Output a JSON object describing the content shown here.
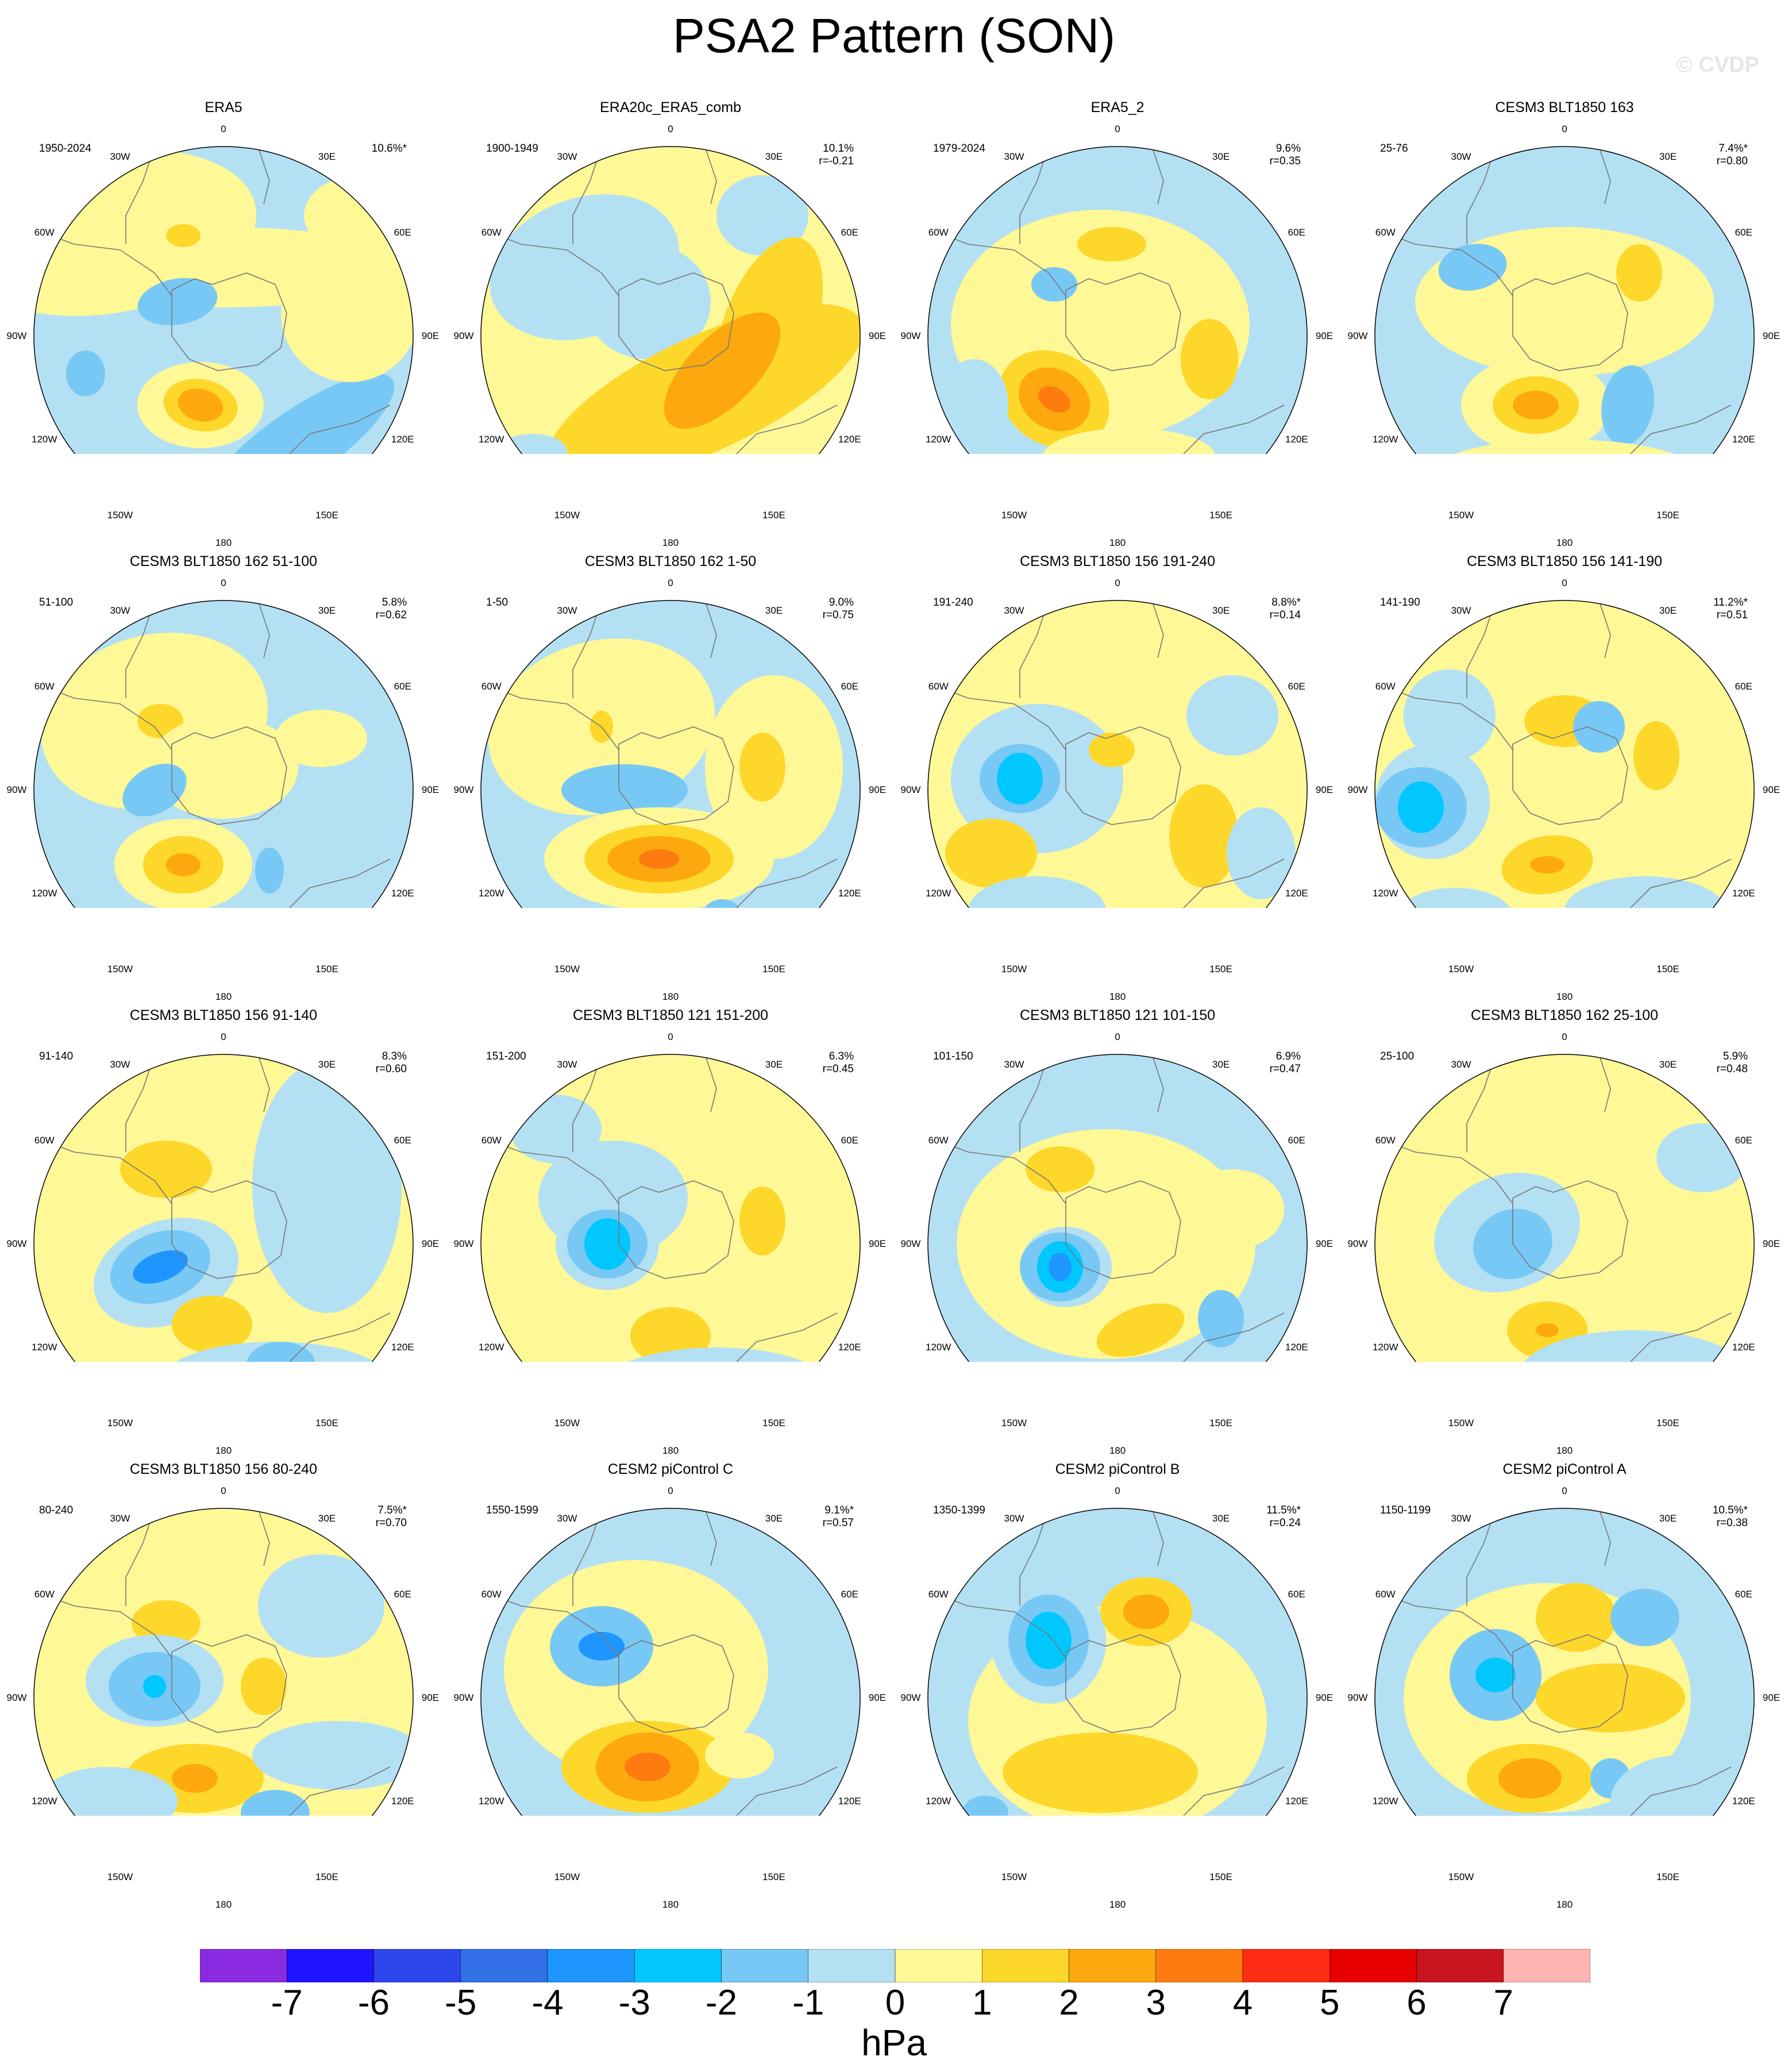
{
  "title": "PSA2 Pattern (SON)",
  "credit": "© CVDP",
  "units": "hPa",
  "colorbar": {
    "ticks": [
      "-7",
      "-6",
      "-5",
      "-4",
      "-3",
      "-2",
      "-1",
      "0",
      "1",
      "2",
      "3",
      "4",
      "5",
      "6",
      "7"
    ],
    "colors": [
      "#8a2be2",
      "#1e14ff",
      "#2c46eb",
      "#3270e8",
      "#1e96ff",
      "#00c8ff",
      "#78c8f5",
      "#b4e0f3",
      "#fff897",
      "#fdd72a",
      "#fda80f",
      "#fd7b0f",
      "#ff2d14",
      "#e60000",
      "#c8141e",
      "#ffb4b4"
    ]
  },
  "longitude_labels": [
    "0",
    "30E",
    "60E",
    "90E",
    "120E",
    "150E",
    "180",
    "150W",
    "120W",
    "90W",
    "60W",
    "30W"
  ],
  "panels": [
    {
      "title": "ERA5",
      "years": "1950-2024",
      "pct": "10.6%*",
      "r": ""
    },
    {
      "title": "ERA20c_ERA5_comb",
      "years": "1900-1949",
      "pct": "10.1%",
      "r": "r=-0.21"
    },
    {
      "title": "ERA5_2",
      "years": "1979-2024",
      "pct": "9.6%",
      "r": "r=0.35"
    },
    {
      "title": "CESM3 BLT1850 163",
      "years": "25-76",
      "pct": "7.4%*",
      "r": "r=0.80"
    },
    {
      "title": "CESM3 BLT1850 162 51-100",
      "years": "51-100",
      "pct": "5.8%",
      "r": "r=0.62"
    },
    {
      "title": "CESM3 BLT1850 162 1-50",
      "years": "1-50",
      "pct": "9.0%",
      "r": "r=0.75"
    },
    {
      "title": "CESM3 BLT1850 156 191-240",
      "years": "191-240",
      "pct": "8.8%*",
      "r": "r=0.14"
    },
    {
      "title": "CESM3 BLT1850 156 141-190",
      "years": "141-190",
      "pct": "11.2%*",
      "r": "r=0.51"
    },
    {
      "title": "CESM3 BLT1850 156 91-140",
      "years": "91-140",
      "pct": "8.3%",
      "r": "r=0.60"
    },
    {
      "title": "CESM3 BLT1850 121 151-200",
      "years": "151-200",
      "pct": "6.3%",
      "r": "r=0.45"
    },
    {
      "title": "CESM3 BLT1850 121 101-150",
      "years": "101-150",
      "pct": "6.9%",
      "r": "r=0.47"
    },
    {
      "title": "CESM3 BLT1850 162 25-100",
      "years": "25-100",
      "pct": "5.9%",
      "r": "r=0.48"
    },
    {
      "title": "CESM3 BLT1850 156 80-240",
      "years": "80-240",
      "pct": "7.5%*",
      "r": "r=0.70"
    },
    {
      "title": "CESM2 piControl C",
      "years": "1550-1599",
      "pct": "9.1%*",
      "r": "r=0.57"
    },
    {
      "title": "CESM2 piControl B",
      "years": "1350-1399",
      "pct": "11.5%*",
      "r": "r=0.24"
    },
    {
      "title": "CESM2 piControl A",
      "years": "1150-1199",
      "pct": "10.5%*",
      "r": "r=0.38"
    }
  ]
}
